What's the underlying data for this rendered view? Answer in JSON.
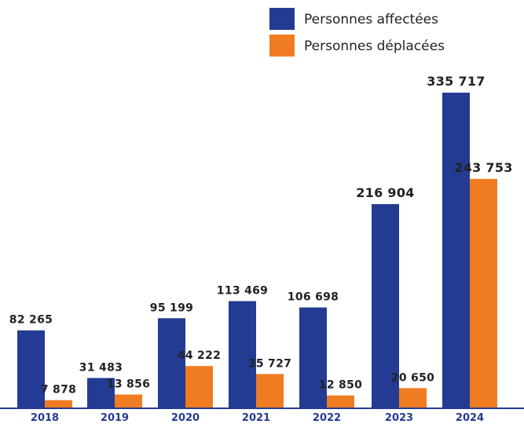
{
  "chart_data": {
    "type": "bar",
    "categories": [
      "2018",
      "2019",
      "2020",
      "2021",
      "2022",
      "2023",
      "2024"
    ],
    "series": [
      {
        "name": "Personnes affectées",
        "values": [
          82265,
          31483,
          95199,
          113469,
          106698,
          216904,
          335717
        ],
        "labels": [
          "82 265",
          "31 483",
          "95 199",
          "113 469",
          "106 698",
          "216 904",
          "335 717"
        ],
        "color": "#233b93"
      },
      {
        "name": "Personnes déplacées",
        "values": [
          7878,
          13856,
          44222,
          35727,
          12850,
          20650,
          243753
        ],
        "labels": [
          "7 878",
          "13 856",
          "44 222",
          "35 727",
          "12 850",
          "20 650",
          "243 753"
        ],
        "color": "#f07c22"
      }
    ],
    "ylim": [
      0,
      335717
    ],
    "grid": false,
    "legend_position": "top-right",
    "tick_color": "#233b93",
    "axis_color": "#233b93"
  }
}
